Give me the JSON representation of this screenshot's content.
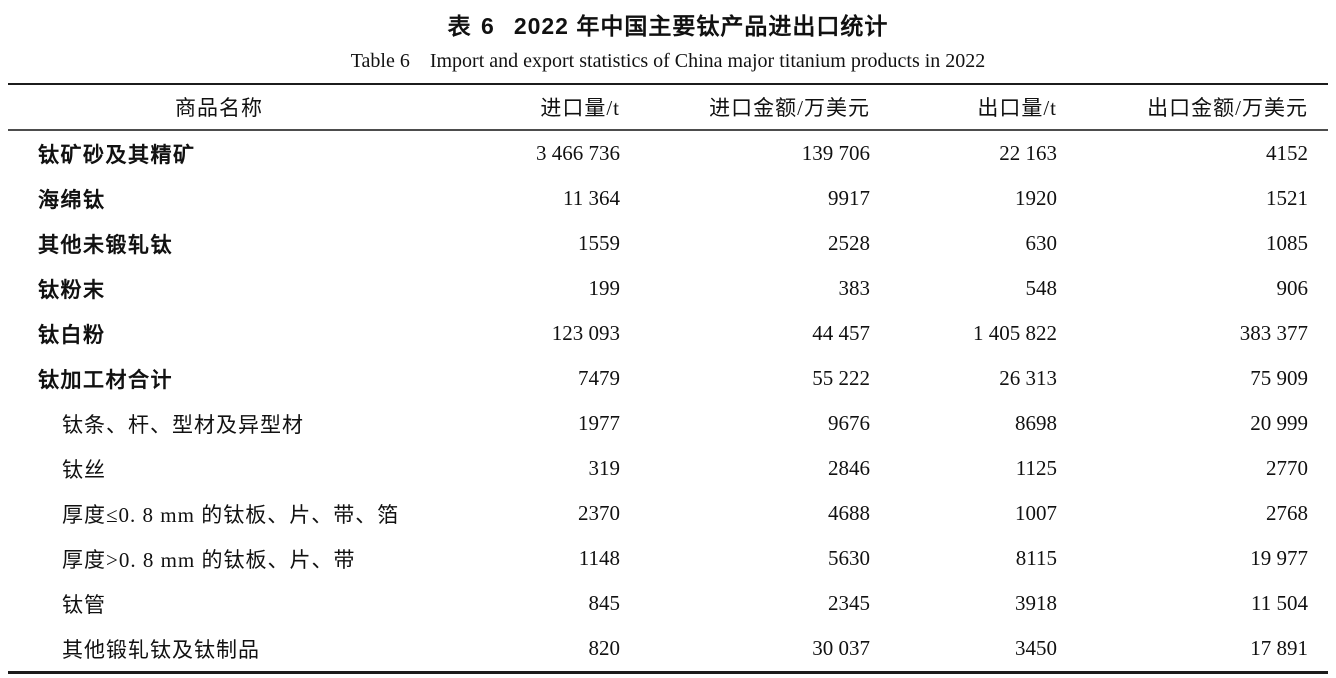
{
  "caption": {
    "zh_label": "表 6",
    "zh_text": "2022 年中国主要钛产品进出口统计",
    "en_label": "Table 6",
    "en_text": "Import and export statistics of China major titanium products in 2022"
  },
  "table": {
    "columns": [
      "商品名称",
      "进口量/t",
      "进口金额/万美元",
      "出口量/t",
      "出口金额/万美元"
    ],
    "rows": [
      {
        "name": "钛矿砂及其精矿",
        "level": "main",
        "import_qty": "3 466 736",
        "import_value": "139 706",
        "export_qty": "22 163",
        "export_value": "4152"
      },
      {
        "name": "海绵钛",
        "level": "main",
        "import_qty": "11 364",
        "import_value": "9917",
        "export_qty": "1920",
        "export_value": "1521"
      },
      {
        "name": "其他未锻轧钛",
        "level": "main",
        "import_qty": "1559",
        "import_value": "2528",
        "export_qty": "630",
        "export_value": "1085"
      },
      {
        "name": "钛粉末",
        "level": "main",
        "import_qty": "199",
        "import_value": "383",
        "export_qty": "548",
        "export_value": "906"
      },
      {
        "name": "钛白粉",
        "level": "main",
        "import_qty": "123 093",
        "import_value": "44 457",
        "export_qty": "1 405 822",
        "export_value": "383 377"
      },
      {
        "name": "钛加工材合计",
        "level": "main",
        "import_qty": "7479",
        "import_value": "55 222",
        "export_qty": "26 313",
        "export_value": "75 909"
      },
      {
        "name": "钛条、杆、型材及异型材",
        "level": "sub",
        "import_qty": "1977",
        "import_value": "9676",
        "export_qty": "8698",
        "export_value": "20 999"
      },
      {
        "name": "钛丝",
        "level": "sub",
        "import_qty": "319",
        "import_value": "2846",
        "export_qty": "1125",
        "export_value": "2770"
      },
      {
        "name": "厚度≤0. 8 mm 的钛板、片、带、箔",
        "level": "sub",
        "import_qty": "2370",
        "import_value": "4688",
        "export_qty": "1007",
        "export_value": "2768"
      },
      {
        "name": "厚度>0. 8 mm 的钛板、片、带",
        "level": "sub",
        "import_qty": "1148",
        "import_value": "5630",
        "export_qty": "8115",
        "export_value": "19 977"
      },
      {
        "name": "钛管",
        "level": "sub",
        "import_qty": "845",
        "import_value": "2345",
        "export_qty": "3918",
        "export_value": "11 504"
      },
      {
        "name": "其他锻轧钛及钛制品",
        "level": "sub",
        "import_qty": "820",
        "import_value": "30 037",
        "export_qty": "3450",
        "export_value": "17 891"
      }
    ]
  },
  "colors": {
    "text": "#111111",
    "rule_heavy": "#1c1c1c",
    "rule_light": "#4d4d4d",
    "background": "#ffffff"
  }
}
